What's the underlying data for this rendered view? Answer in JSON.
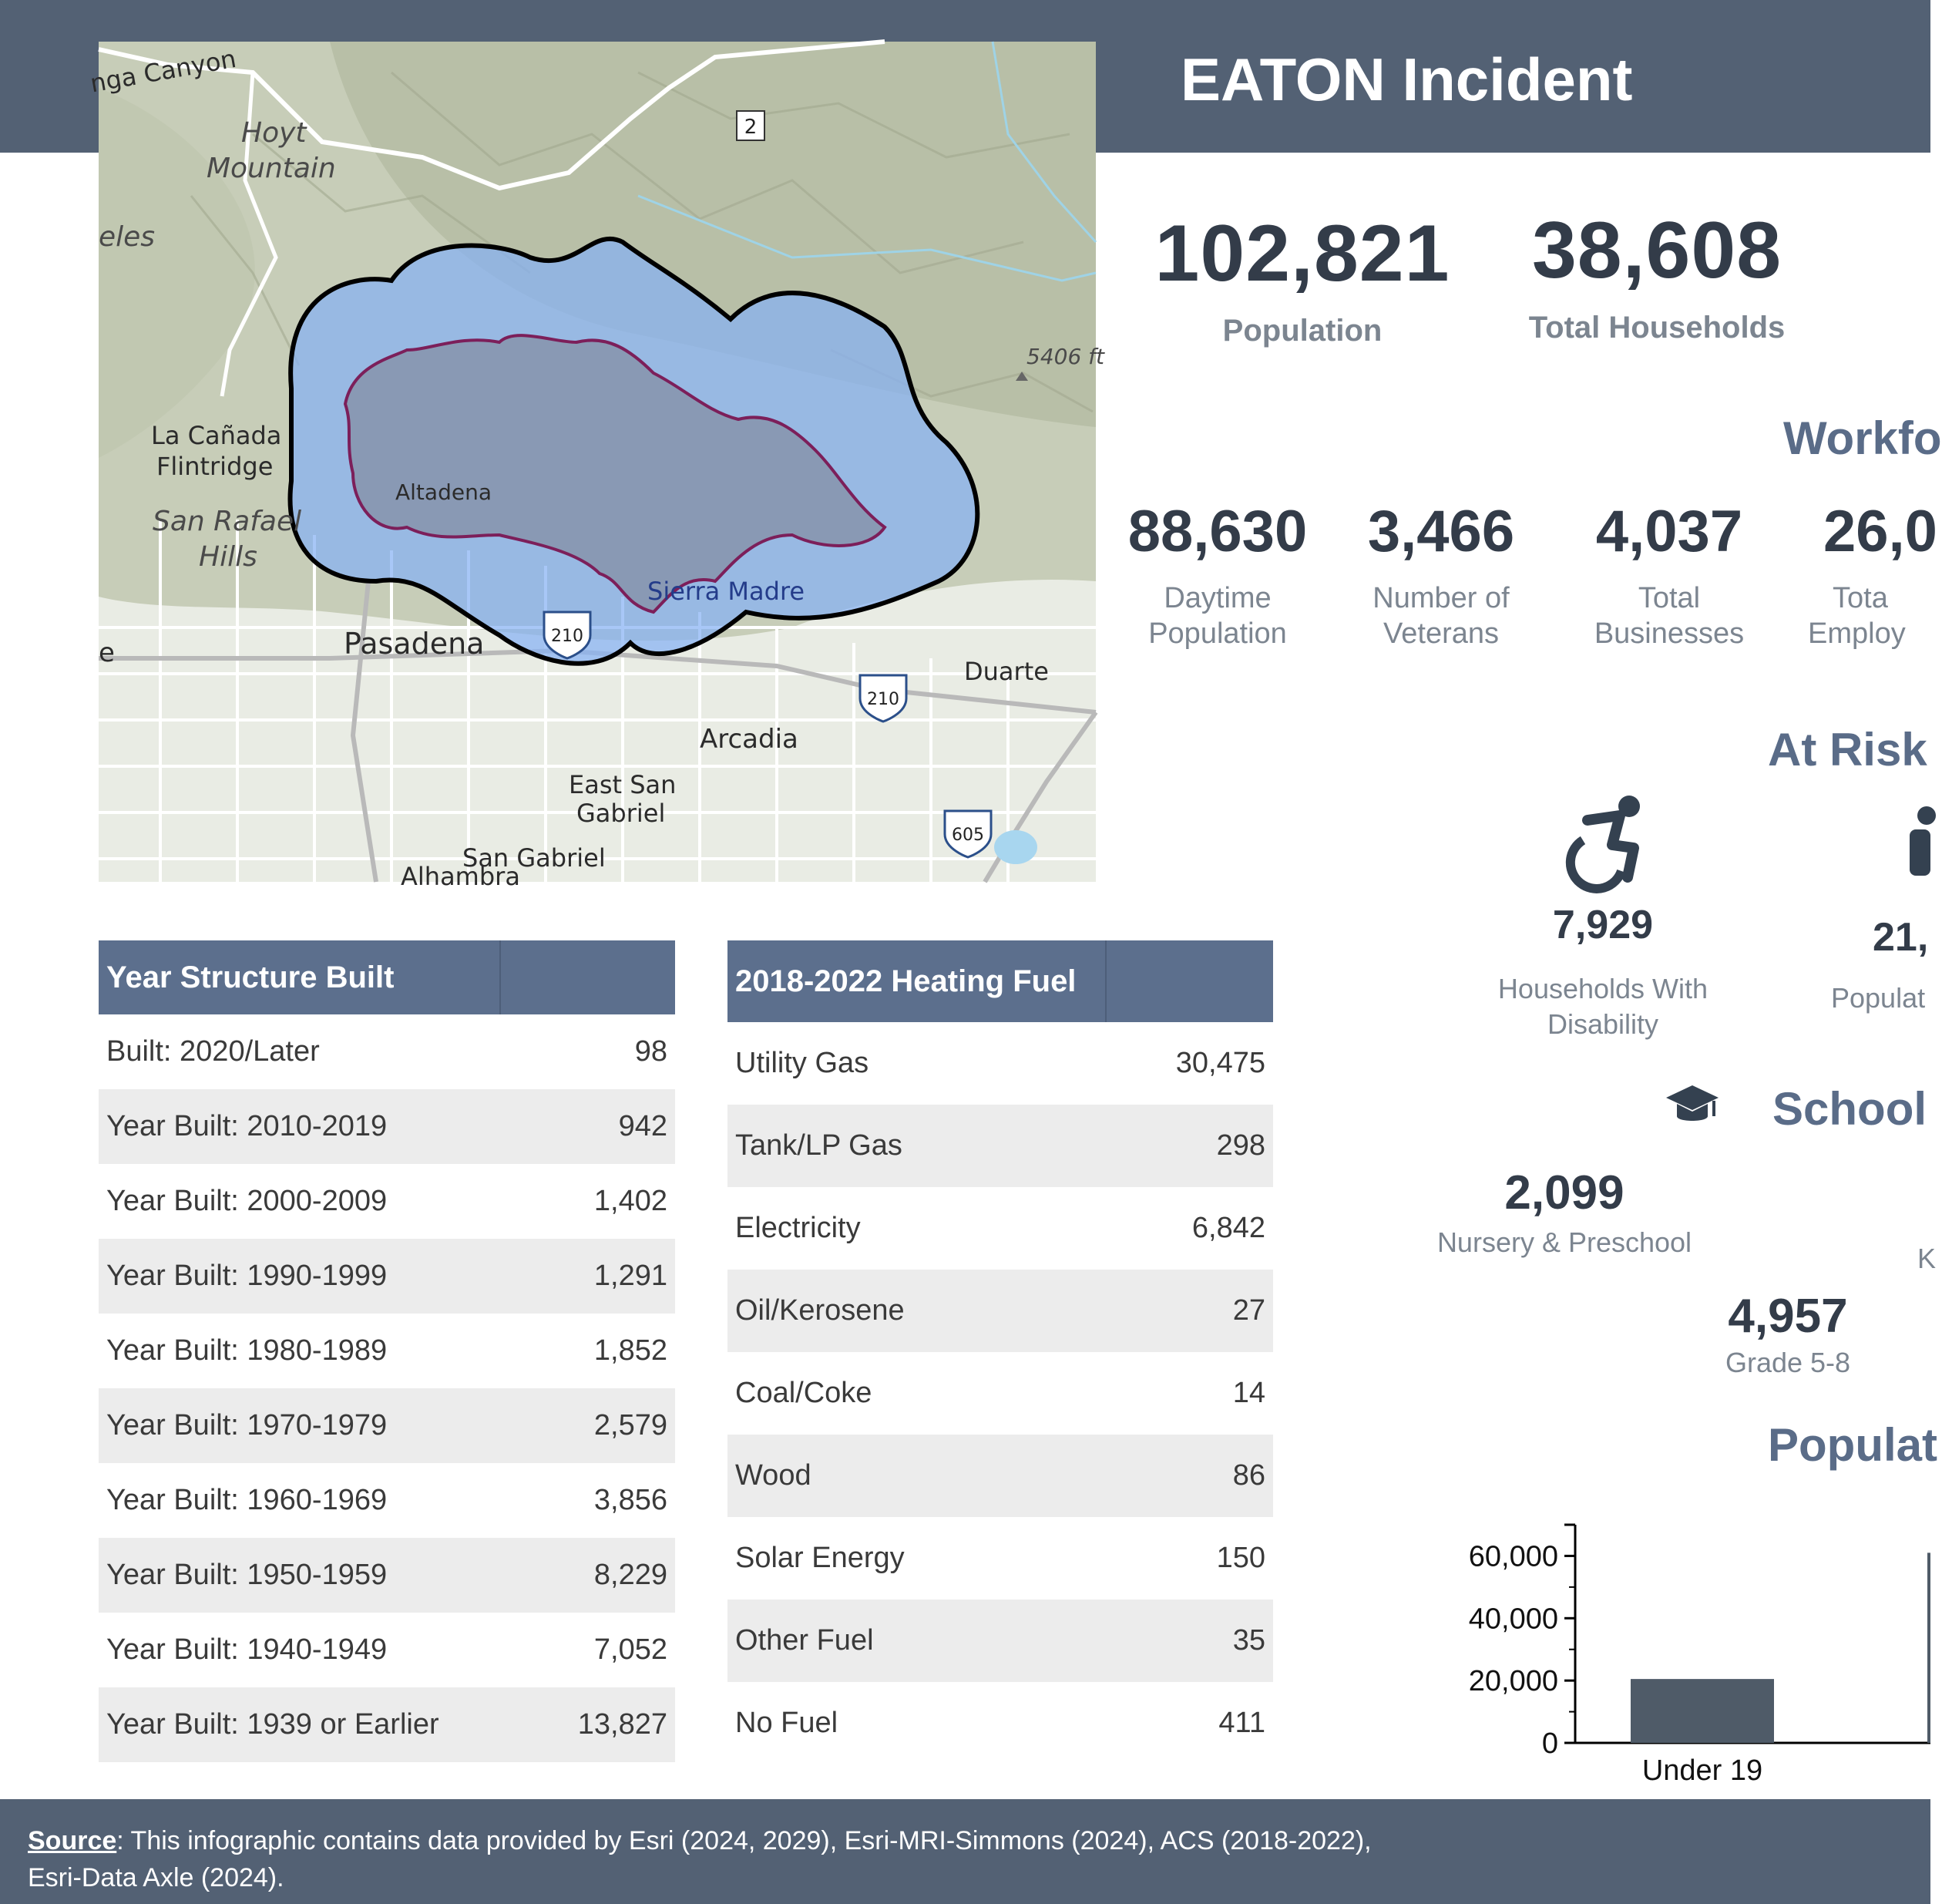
{
  "header": {
    "title": "EATON Incident"
  },
  "map": {
    "labels": {
      "canyon": "nga Canyon",
      "hoyt": "Hoyt",
      "mountain": "Mountain",
      "eles": "eles",
      "la_canada": "La Cañada",
      "flintridge": "Flintridge",
      "san_rafael": "San Rafael",
      "hills": "Hills",
      "altadena": "Altadena",
      "sierra_madre": "Sierra Madre",
      "pasadena": "Pasadena",
      "duarte": "Duarte",
      "arcadia": "Arcadia",
      "east_san": "East San",
      "gabriel": "Gabriel",
      "san_gabriel": "San Gabriel",
      "alhambra": "Alhambra",
      "elevation": "5406 ft",
      "edge_e": "e"
    },
    "shields": {
      "route2": "2",
      "i210_a": "210",
      "i210_b": "210",
      "i605": "605"
    }
  },
  "summary": {
    "population": {
      "value": "102,821",
      "label": "Population"
    },
    "households": {
      "value": "38,608",
      "label": "Total Households"
    }
  },
  "workforce": {
    "heading": "Workfo",
    "daytime": {
      "value": "88,630",
      "label1": "Daytime",
      "label2": "Population"
    },
    "veterans": {
      "value": "3,466",
      "label1": "Number of",
      "label2": "Veterans"
    },
    "businesses": {
      "value": "4,037",
      "label1": "Total",
      "label2": "Businesses"
    },
    "employees": {
      "value": "26,0",
      "label1": "Tota",
      "label2": "Employ"
    }
  },
  "at_risk": {
    "heading": "At Risk",
    "disability": {
      "value": "7,929",
      "label1": "Households With",
      "label2": "Disability"
    },
    "population": {
      "value": "21,",
      "label": "Populat"
    }
  },
  "school": {
    "heading": "School",
    "nursery": {
      "value": "2,099",
      "label": "Nursery & Preschool"
    },
    "k_label": "K",
    "grade58": {
      "value": "4,957",
      "label": "Grade 5-8"
    }
  },
  "population_chart_heading": "Populat",
  "year_structure_built": {
    "header": "Year Structure Built",
    "rows": [
      {
        "label": "Built: 2020/Later",
        "value": "98"
      },
      {
        "label": "Year Built: 2010-2019",
        "value": "942"
      },
      {
        "label": "Year Built: 2000-2009",
        "value": "1,402"
      },
      {
        "label": "Year Built: 1990-1999",
        "value": "1,291"
      },
      {
        "label": "Year Built: 1980-1989",
        "value": "1,852"
      },
      {
        "label": "Year Built: 1970-1979",
        "value": "2,579"
      },
      {
        "label": "Year Built: 1960-1969",
        "value": "3,856"
      },
      {
        "label": "Year Built: 1950-1959",
        "value": "8,229"
      },
      {
        "label": "Year Built: 1940-1949",
        "value": "7,052"
      },
      {
        "label": "Year Built: 1939 or Earlier",
        "value": "13,827"
      }
    ]
  },
  "heating_fuel": {
    "header": "2018-2022 Heating Fuel",
    "rows": [
      {
        "label": "Utility Gas",
        "value": "30,475"
      },
      {
        "label": "Tank/LP Gas",
        "value": "298"
      },
      {
        "label": "Electricity",
        "value": "6,842"
      },
      {
        "label": "Oil/Kerosene",
        "value": "27"
      },
      {
        "label": "Coal/Coke",
        "value": "14"
      },
      {
        "label": "Wood",
        "value": "86"
      },
      {
        "label": "Solar Energy",
        "value": "150"
      },
      {
        "label": "Other Fuel",
        "value": "35"
      },
      {
        "label": "No Fuel",
        "value": "411"
      }
    ]
  },
  "chart_data": {
    "type": "bar",
    "categories": [
      "Under 19"
    ],
    "values": [
      20500
    ],
    "ylim": [
      0,
      70000
    ],
    "yticks": [
      0,
      20000,
      40000,
      60000
    ],
    "ytick_labels": [
      "0",
      "20,000",
      "40,000",
      "60,000"
    ],
    "bar_color": "#4f5b68",
    "truncated_bar_note": "a second bar is cut off at the right edge"
  },
  "footer": {
    "source_label": "Source",
    "text1": ": This infographic contains data provided by Esri (2024, 2029), Esri-MRI-Simmons (2024), ACS (2018-2022),",
    "text2": "Esri-Data Axle (2024)."
  },
  "colors": {
    "header": "#536174",
    "table_header": "#5c6f8d",
    "heading": "#5a6c88",
    "stat_number": "#333c49"
  },
  "icons": {
    "disability": "wheelchair-icon",
    "person": "person-icon",
    "school": "graduation-cap-icon"
  }
}
